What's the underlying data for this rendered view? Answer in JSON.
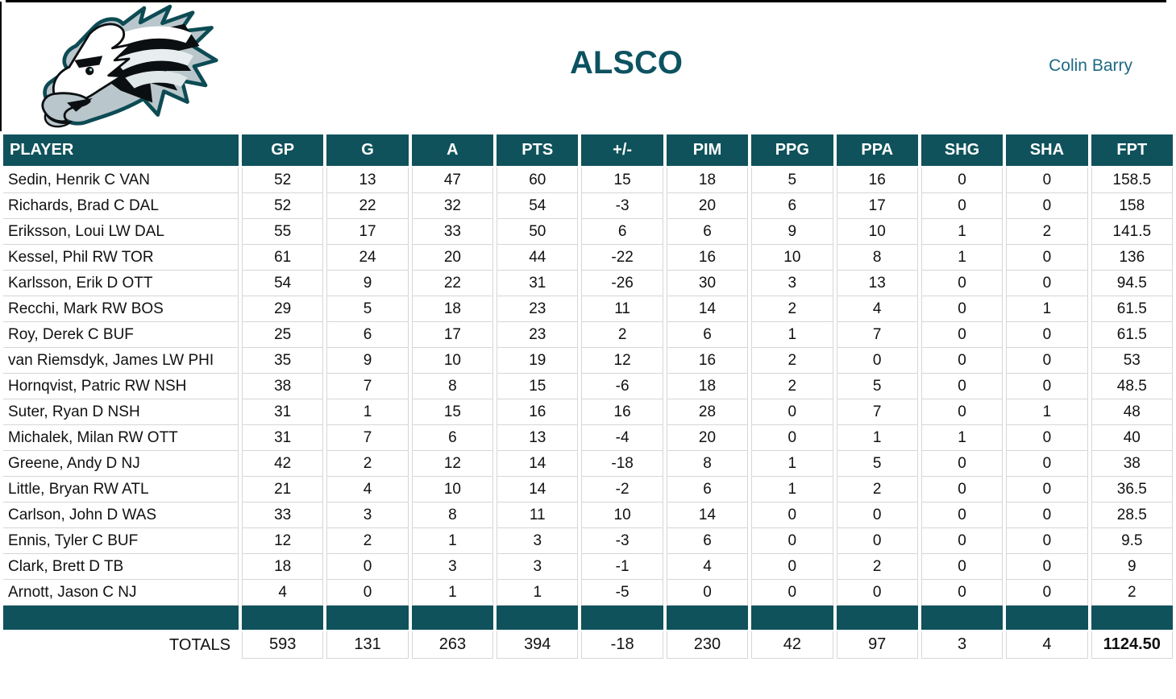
{
  "header": {
    "title": "ALSCO",
    "owner": "Colin Barry",
    "logo": "philadelphia-eagles-logo"
  },
  "colors": {
    "header_teal": "#0f525b",
    "title_teal": "#0d5260",
    "owner_teal": "#1e6a85",
    "gridline": "#d6d6d6",
    "logo_silver": "#b9c6cb",
    "logo_midnight_green": "#0c4b54"
  },
  "table": {
    "columns": [
      "PLAYER",
      "GP",
      "G",
      "A",
      "PTS",
      "+/-",
      "PIM",
      "PPG",
      "PPA",
      "SHG",
      "SHA",
      "FPT"
    ],
    "rows": [
      {
        "cells": [
          "Sedin, Henrik C VAN",
          "52",
          "13",
          "47",
          "60",
          "15",
          "18",
          "5",
          "16",
          "0",
          "0",
          "158.5"
        ]
      },
      {
        "cells": [
          "Richards, Brad C DAL",
          "52",
          "22",
          "32",
          "54",
          "-3",
          "20",
          "6",
          "17",
          "0",
          "0",
          "158"
        ]
      },
      {
        "cells": [
          "Eriksson, Loui LW DAL",
          "55",
          "17",
          "33",
          "50",
          "6",
          "6",
          "9",
          "10",
          "1",
          "2",
          "141.5"
        ]
      },
      {
        "cells": [
          "Kessel, Phil RW TOR",
          "61",
          "24",
          "20",
          "44",
          "-22",
          "16",
          "10",
          "8",
          "1",
          "0",
          "136"
        ]
      },
      {
        "cells": [
          "Karlsson, Erik D OTT",
          "54",
          "9",
          "22",
          "31",
          "-26",
          "30",
          "3",
          "13",
          "0",
          "0",
          "94.5"
        ]
      },
      {
        "cells": [
          "Recchi, Mark RW BOS",
          "29",
          "5",
          "18",
          "23",
          "11",
          "14",
          "2",
          "4",
          "0",
          "1",
          "61.5"
        ]
      },
      {
        "cells": [
          "Roy, Derek C BUF",
          "25",
          "6",
          "17",
          "23",
          "2",
          "6",
          "1",
          "7",
          "0",
          "0",
          "61.5"
        ]
      },
      {
        "cells": [
          "van Riemsdyk, James LW PHI",
          "35",
          "9",
          "10",
          "19",
          "12",
          "16",
          "2",
          "0",
          "0",
          "0",
          "53"
        ]
      },
      {
        "cells": [
          "Hornqvist, Patric RW NSH",
          "38",
          "7",
          "8",
          "15",
          "-6",
          "18",
          "2",
          "5",
          "0",
          "0",
          "48.5"
        ]
      },
      {
        "cells": [
          "Suter, Ryan D NSH",
          "31",
          "1",
          "15",
          "16",
          "16",
          "28",
          "0",
          "7",
          "0",
          "1",
          "48"
        ]
      },
      {
        "cells": [
          "Michalek, Milan RW OTT",
          "31",
          "7",
          "6",
          "13",
          "-4",
          "20",
          "0",
          "1",
          "1",
          "0",
          "40"
        ]
      },
      {
        "cells": [
          "Greene, Andy D NJ",
          "42",
          "2",
          "12",
          "14",
          "-18",
          "8",
          "1",
          "5",
          "0",
          "0",
          "38"
        ]
      },
      {
        "cells": [
          "Little, Bryan RW ATL",
          "21",
          "4",
          "10",
          "14",
          "-2",
          "6",
          "1",
          "2",
          "0",
          "0",
          "36.5"
        ]
      },
      {
        "cells": [
          "Carlson, John D WAS",
          "33",
          "3",
          "8",
          "11",
          "10",
          "14",
          "0",
          "0",
          "0",
          "0",
          "28.5"
        ]
      },
      {
        "cells": [
          "Ennis, Tyler C BUF",
          "12",
          "2",
          "1",
          "3",
          "-3",
          "6",
          "0",
          "0",
          "0",
          "0",
          "9.5"
        ]
      },
      {
        "cells": [
          "Clark, Brett D TB",
          "18",
          "0",
          "3",
          "3",
          "-1",
          "4",
          "0",
          "2",
          "0",
          "0",
          "9"
        ]
      },
      {
        "cells": [
          "Arnott, Jason C NJ",
          "4",
          "0",
          "1",
          "1",
          "-5",
          "0",
          "0",
          "0",
          "0",
          "0",
          "2"
        ]
      }
    ],
    "totals_label": "TOTALS",
    "totals": [
      "593",
      "131",
      "263",
      "394",
      "-18",
      "230",
      "42",
      "97",
      "3",
      "4",
      "1124.50"
    ]
  }
}
